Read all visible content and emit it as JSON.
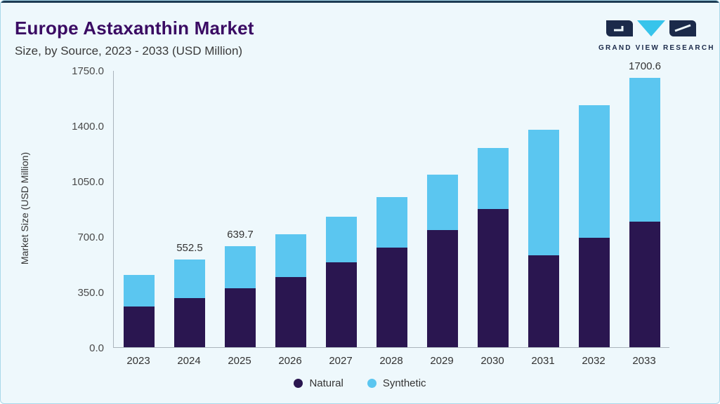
{
  "header": {
    "title": "Europe Astaxanthin Market",
    "subtitle": "Size, by Source, 2023 - 2033 (USD Million)"
  },
  "logo": {
    "text": "GRAND VIEW RESEARCH"
  },
  "chart_data": {
    "type": "bar",
    "stacked": true,
    "title": "Europe Astaxanthin Market Size, by Source, 2023 - 2033 (USD Million)",
    "ylabel": "Market Size (USD Million)",
    "xlabel": "",
    "ylim": [
      0,
      1750
    ],
    "yticks": [
      "0.0",
      "350.0",
      "700.0",
      "1050.0",
      "1400.0",
      "1750.0"
    ],
    "grid": false,
    "legend_position": "bottom",
    "categories": [
      "2023",
      "2024",
      "2025",
      "2026",
      "2027",
      "2028",
      "2029",
      "2030",
      "2031",
      "2032",
      "2033"
    ],
    "series": [
      {
        "name": "Natural",
        "color": "#2A1650",
        "values": [
          255,
          310,
          372,
          445,
          535,
          630,
          740,
          875,
          580,
          690,
          795
        ]
      },
      {
        "name": "Synthetic",
        "color": "#5BC6F0",
        "values": [
          200,
          242.5,
          267.7,
          270,
          290,
          320,
          350,
          385,
          795,
          840,
          905.6
        ]
      }
    ],
    "totals_shown": [
      {
        "category": "2024",
        "label": "552.5"
      },
      {
        "category": "2025",
        "label": "639.7"
      },
      {
        "category": "2033",
        "label": "1700.6"
      }
    ]
  },
  "colors": {
    "background": "#EEF8FC",
    "border": "#A9D8EA",
    "top_accent": "#1D3C54",
    "title": "#3A0B63",
    "subtitle": "#3A3A3A",
    "axis": "#ABB4BC",
    "tick_text": "#4A4A4A",
    "label_text": "#333333",
    "logo_navy": "#1B2A4A",
    "logo_cyan": "#37C4EB"
  }
}
